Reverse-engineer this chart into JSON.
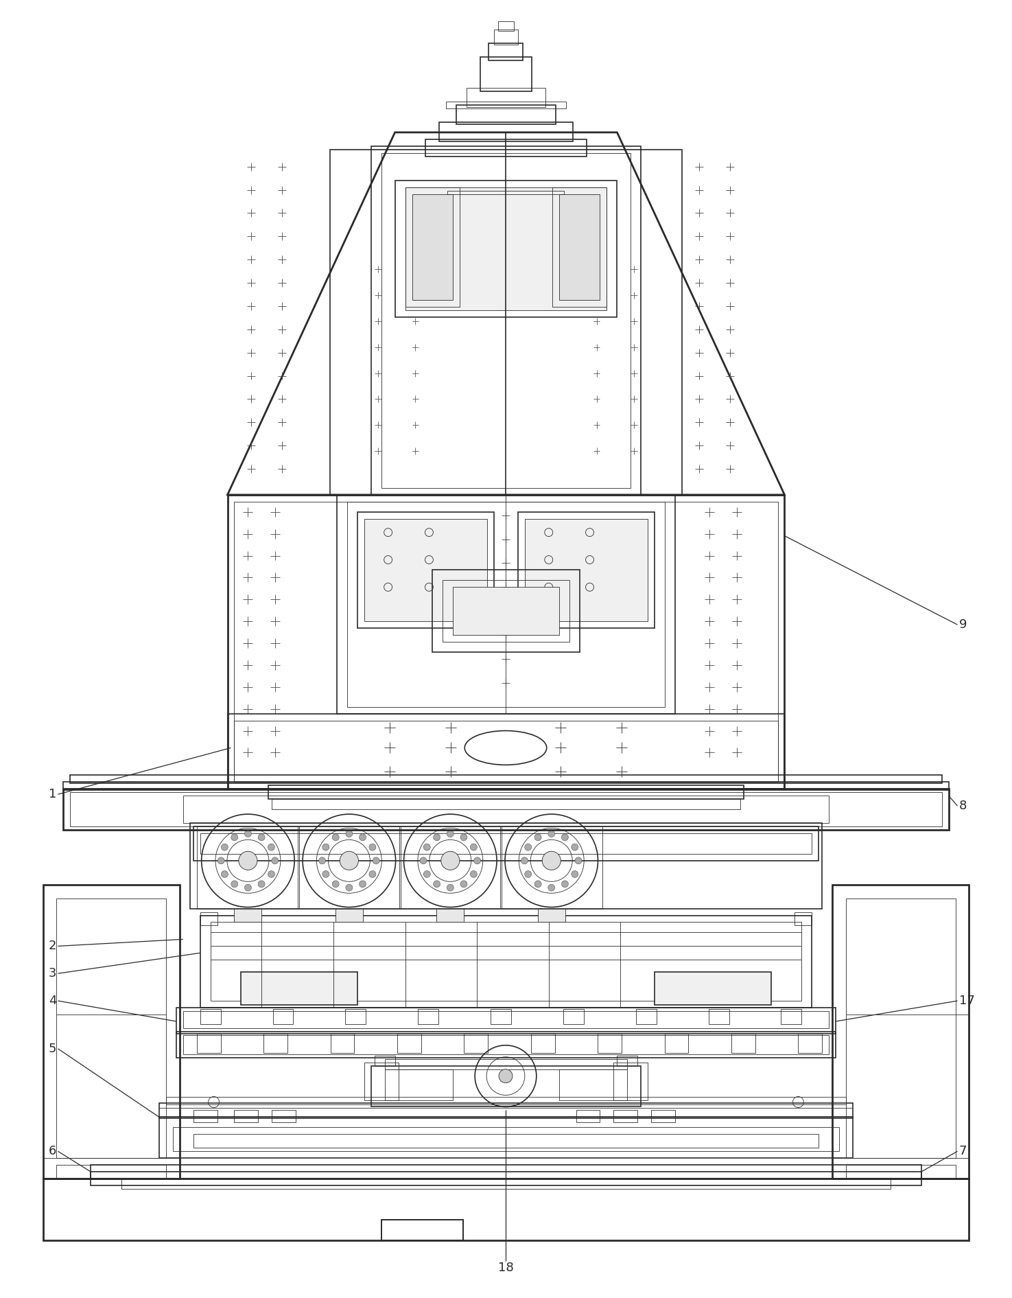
{
  "background_color": "#ffffff",
  "lc": "#2a2a2a",
  "lw": 1.2,
  "lw_thin": 0.6,
  "lw_thick": 2.0,
  "fig_width": 14.75,
  "fig_height": 18.91,
  "ann_fs": 13,
  "ann_color": "#2a2a2a"
}
